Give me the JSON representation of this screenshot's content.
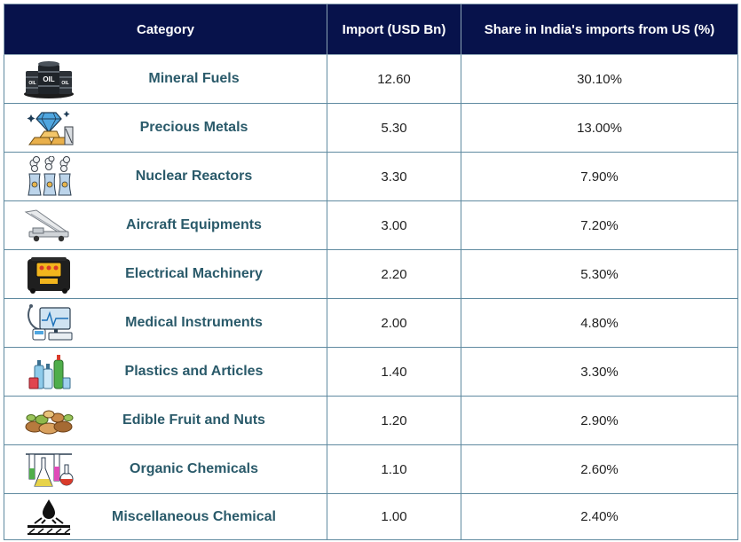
{
  "headers": {
    "category": "Category",
    "import": "Import (USD Bn)",
    "share": "Share in India's imports from US (%)"
  },
  "rows": [
    {
      "category": "Mineral Fuels",
      "icon": "oil-barrels-icon",
      "import": "12.60",
      "share": "30.10%",
      "icon_text": "OIL"
    },
    {
      "category": "Precious Metals",
      "icon": "diamond-gold-icon",
      "import": "5.30",
      "share": "13.00%"
    },
    {
      "category": "Nuclear Reactors",
      "icon": "nuclear-reactor-icon",
      "import": "3.30",
      "share": "7.90%"
    },
    {
      "category": "Aircraft Equipments",
      "icon": "aircraft-stairs-truck-icon",
      "import": "3.00",
      "share": "7.20%"
    },
    {
      "category": "Electrical Machinery",
      "icon": "generator-icon",
      "import": "2.20",
      "share": "5.30%"
    },
    {
      "category": "Medical Instruments",
      "icon": "medical-monitor-icon",
      "import": "2.00",
      "share": "4.80%"
    },
    {
      "category": "Plastics and Articles",
      "icon": "plastic-bottles-icon",
      "import": "1.40",
      "share": "3.30%"
    },
    {
      "category": "Edible Fruit and Nuts",
      "icon": "nuts-icon",
      "import": "1.20",
      "share": "2.90%"
    },
    {
      "category": "Organic Chemicals",
      "icon": "lab-flasks-icon",
      "import": "1.10",
      "share": "2.60%"
    },
    {
      "category": "Miscellaneous Chemical",
      "icon": "chemical-drop-icon",
      "import": "1.00",
      "share": "2.40%"
    }
  ],
  "colors": {
    "header_bg": "#07124b",
    "category_text": "#2a5a6a",
    "border": "#5f8aa0"
  }
}
